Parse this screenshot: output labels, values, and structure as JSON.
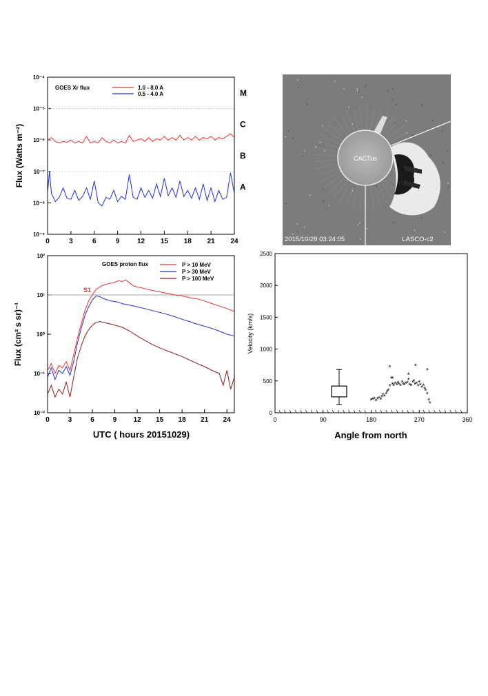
{
  "chart_data": [
    {
      "id": "xray",
      "type": "line",
      "ylabel": "Flux (Watts m⁻²)",
      "y_scale": "log",
      "ylim": [
        1e-09,
        0.0001
      ],
      "xlim": [
        0,
        24
      ],
      "xticks": [
        "0",
        "3",
        "6",
        "9",
        "12",
        "15",
        "18",
        "21",
        "24"
      ],
      "yticks": [
        "10⁻⁹",
        "10⁻⁸",
        "10⁻⁷",
        "10⁻⁶",
        "10⁻⁵",
        "10⁻⁴"
      ],
      "legend_title": "GOES Xr flux",
      "series": [
        {
          "name": "1.0 - 8.0 A",
          "color": "#e8312f",
          "x": [
            0,
            0.5,
            1,
            1.5,
            2,
            2.5,
            3,
            3.5,
            4,
            4.5,
            5,
            5.5,
            6,
            6.5,
            7,
            7.5,
            8,
            8.5,
            9,
            9.5,
            10,
            10.5,
            11,
            11.5,
            12,
            12.5,
            13,
            13.5,
            14,
            14.5,
            15,
            15.5,
            16,
            16.5,
            17,
            17.5,
            18,
            18.5,
            19,
            19.5,
            20,
            20.5,
            21,
            21.5,
            22,
            22.5,
            23,
            23.5,
            24
          ],
          "values": [
            1e-06,
            1.2e-06,
            9e-07,
            8e-07,
            9e-07,
            8.5e-07,
            1e-06,
            8e-07,
            9e-07,
            8e-07,
            1.3e-06,
            8e-07,
            9e-07,
            8e-07,
            1.2e-06,
            9e-07,
            8e-07,
            1e-06,
            8e-07,
            9e-07,
            8e-07,
            1.4e-06,
            9e-07,
            1e-06,
            1.1e-06,
            9e-07,
            1.2e-06,
            9e-07,
            1.1e-06,
            1e-06,
            1.3e-06,
            1e-06,
            1.2e-06,
            1e-06,
            1.4e-06,
            1e-06,
            1.2e-06,
            1e-06,
            1.3e-06,
            1e-06,
            1.2e-06,
            1.1e-06,
            1.3e-06,
            1e-06,
            1.2e-06,
            1.1e-06,
            1.3e-06,
            1.6e-06,
            1.2e-06
          ]
        },
        {
          "name": "0.5 - 4.0 A",
          "color": "#1f2fd6",
          "x": [
            0,
            0.25,
            0.5,
            1,
            1.5,
            2,
            2.5,
            3,
            3.5,
            4,
            4.5,
            5,
            5.5,
            6,
            6.5,
            7,
            7.5,
            8,
            8.5,
            9,
            9.5,
            10,
            10.5,
            11,
            11.5,
            12,
            12.5,
            13,
            13.5,
            14,
            14.5,
            15,
            15.5,
            16,
            16.5,
            17,
            17.5,
            18,
            18.5,
            19,
            19.5,
            20,
            20.5,
            21,
            21.5,
            22,
            22.5,
            23,
            23.5,
            24
          ],
          "values": [
            2e-08,
            1e-07,
            2e-08,
            1.1e-08,
            1.5e-08,
            3e-08,
            1.4e-08,
            1.3e-08,
            2.5e-08,
            1.2e-08,
            1.6e-08,
            3e-08,
            1.3e-08,
            5e-08,
            1e-08,
            8e-09,
            1.5e-08,
            1.3e-08,
            2.5e-08,
            1.1e-08,
            1.6e-08,
            1.3e-08,
            8e-08,
            1.5e-08,
            1.3e-08,
            3e-08,
            1.5e-08,
            2.5e-08,
            1.4e-08,
            4e-08,
            1.6e-08,
            6e-08,
            1.7e-08,
            3e-08,
            1.5e-08,
            5e-08,
            1.6e-08,
            2.5e-08,
            1.4e-08,
            3e-08,
            1.3e-08,
            4e-08,
            1.2e-08,
            3e-08,
            1.1e-08,
            2.5e-08,
            1.3e-08,
            1.5e-08,
            9e-08,
            2e-08
          ]
        }
      ],
      "class_labels": [
        "M",
        "C",
        "B",
        "A"
      ],
      "class_values": [
        1e-05,
        1e-06,
        1e-07,
        1e-08
      ]
    },
    {
      "id": "lasco",
      "type": "image",
      "center_label": "CACTus",
      "timestamp": "2015/10/29 03:24:05",
      "instrument": "LASCO-c2"
    },
    {
      "id": "proton",
      "type": "line",
      "ylabel": "Flux (cm² s sr)⁻¹",
      "xlabel": "UTC ( hours 20151029)",
      "y_scale": "log",
      "ylim": [
        0.01,
        100
      ],
      "xlim": [
        0,
        25
      ],
      "xticks": [
        "0",
        "3",
        "6",
        "9",
        "12",
        "15",
        "18",
        "21",
        "24"
      ],
      "yticks": [
        "10⁻²",
        "10⁻¹",
        "10⁰",
        "10¹",
        "10²"
      ],
      "legend_title": "GOES proton flux",
      "threshold": 10,
      "threshold_label": "S1",
      "series": [
        {
          "name": "P > 10 MeV",
          "color": "#e8312f",
          "x": [
            0,
            0.5,
            1,
            1.5,
            2,
            2.5,
            3,
            3.5,
            4,
            4.5,
            5,
            5.5,
            6,
            6.5,
            7,
            7.5,
            8,
            8.5,
            9,
            9.5,
            10,
            10.5,
            11,
            11.5,
            12,
            13,
            14,
            15,
            16,
            17,
            18,
            19,
            20,
            21,
            22,
            23,
            24,
            25
          ],
          "values": [
            0.12,
            0.18,
            0.1,
            0.16,
            0.14,
            0.2,
            0.12,
            0.3,
            0.8,
            1.8,
            4,
            7,
            10,
            14,
            16,
            18,
            19,
            20,
            21,
            23,
            22,
            24,
            20,
            17,
            16,
            14.5,
            13,
            12,
            11,
            10,
            9.5,
            8.5,
            8,
            7,
            6,
            5.2,
            4.5,
            3.8
          ]
        },
        {
          "name": "P > 30 MeV",
          "color": "#1f2fd6",
          "x": [
            0,
            0.5,
            1,
            1.5,
            2,
            2.5,
            3,
            3.5,
            4,
            4.5,
            5,
            5.5,
            6,
            6.5,
            7,
            7.5,
            8,
            8.5,
            9,
            9.5,
            10,
            11,
            12,
            13,
            14,
            15,
            16,
            17,
            18,
            19,
            20,
            21,
            22,
            23,
            24,
            25
          ],
          "values": [
            0.08,
            0.14,
            0.07,
            0.12,
            0.1,
            0.15,
            0.09,
            0.2,
            0.6,
            1.4,
            3,
            5,
            7.5,
            9.5,
            9,
            8,
            7.5,
            7,
            6.8,
            6.5,
            6,
            5.5,
            5,
            4.5,
            4,
            3.6,
            3.2,
            2.8,
            2.4,
            2.1,
            1.8,
            1.6,
            1.4,
            1.2,
            1.0,
            0.9
          ]
        },
        {
          "name": "P > 100 MeV",
          "color": "#8b1a1a",
          "x": [
            0,
            0.5,
            1,
            1.5,
            2,
            2.5,
            3,
            3.5,
            4,
            4.5,
            5,
            5.5,
            6,
            6.5,
            7,
            7.5,
            8,
            8.5,
            9,
            9.5,
            10,
            11,
            12,
            13,
            14,
            15,
            16,
            17,
            18,
            19,
            20,
            21,
            22,
            23,
            23.5,
            24,
            24.5,
            25
          ],
          "values": [
            0.03,
            0.05,
            0.025,
            0.04,
            0.03,
            0.06,
            0.025,
            0.08,
            0.25,
            0.5,
            0.9,
            1.3,
            1.7,
            2.0,
            2.1,
            2.0,
            1.9,
            1.8,
            1.7,
            1.6,
            1.5,
            1.2,
            0.9,
            0.7,
            0.55,
            0.45,
            0.38,
            0.32,
            0.27,
            0.22,
            0.18,
            0.15,
            0.12,
            0.1,
            0.05,
            0.12,
            0.04,
            0.08
          ]
        }
      ]
    },
    {
      "id": "cme",
      "type": "scatter",
      "ylabel": "Velocity (km/s)",
      "xlabel": "Angle from north",
      "xlim": [
        0,
        360
      ],
      "ylim": [
        0,
        2500
      ],
      "xticks": [
        "0",
        "90",
        "180",
        "270",
        "360"
      ],
      "yticks": [
        "0",
        "500",
        "1000",
        "1500",
        "2000",
        "2500"
      ],
      "box": {
        "x": 120,
        "q1": 250,
        "q3": 420,
        "whisker_low": 130,
        "whisker_high": 680
      },
      "points": {
        "x": [
          180,
          183,
          186,
          189,
          192,
          195,
          198,
          200,
          202,
          205,
          208,
          210,
          212,
          215,
          218,
          220,
          222,
          225,
          228,
          230,
          232,
          235,
          238,
          240,
          242,
          245,
          248,
          250,
          252,
          255,
          258,
          260,
          262,
          265,
          268,
          270,
          272,
          275,
          278,
          280,
          282,
          285,
          288,
          290,
          215,
          220,
          263,
          250,
          285
        ],
        "y": [
          200,
          210,
          220,
          190,
          215,
          230,
          210,
          250,
          280,
          260,
          300,
          330,
          350,
          420,
          540,
          450,
          430,
          460,
          440,
          470,
          450,
          430,
          480,
          450,
          440,
          460,
          470,
          520,
          440,
          430,
          480,
          500,
          450,
          460,
          420,
          480,
          440,
          400,
          430,
          380,
          350,
          300,
          200,
          150,
          720,
          540,
          740,
          600,
          670
        ]
      }
    }
  ]
}
